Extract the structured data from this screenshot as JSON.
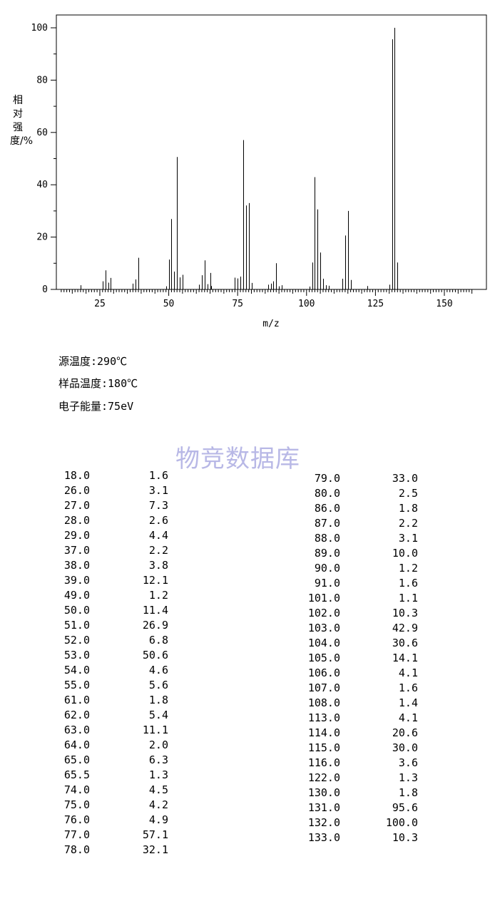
{
  "chart_data": {
    "type": "bar",
    "xlabel": "m/z",
    "ylabel": "相对强度/%",
    "xlim": [
      10,
      160
    ],
    "ylim": [
      0,
      100
    ],
    "xticks": [
      "25",
      "50",
      "75",
      "100",
      "125",
      "150"
    ],
    "yticks": [
      "0",
      "20",
      "40",
      "60",
      "80",
      "100"
    ],
    "grid": false,
    "peaks": [
      {
        "mz": 18.0,
        "intensity": 1.6
      },
      {
        "mz": 26.0,
        "intensity": 3.1
      },
      {
        "mz": 27.0,
        "intensity": 7.3
      },
      {
        "mz": 28.0,
        "intensity": 2.6
      },
      {
        "mz": 29.0,
        "intensity": 4.4
      },
      {
        "mz": 37.0,
        "intensity": 2.2
      },
      {
        "mz": 38.0,
        "intensity": 3.8
      },
      {
        "mz": 39.0,
        "intensity": 12.1
      },
      {
        "mz": 49.0,
        "intensity": 1.2
      },
      {
        "mz": 50.0,
        "intensity": 11.4
      },
      {
        "mz": 51.0,
        "intensity": 26.9
      },
      {
        "mz": 52.0,
        "intensity": 6.8
      },
      {
        "mz": 53.0,
        "intensity": 50.6
      },
      {
        "mz": 54.0,
        "intensity": 4.6
      },
      {
        "mz": 55.0,
        "intensity": 5.6
      },
      {
        "mz": 61.0,
        "intensity": 1.8
      },
      {
        "mz": 62.0,
        "intensity": 5.4
      },
      {
        "mz": 63.0,
        "intensity": 11.1
      },
      {
        "mz": 64.0,
        "intensity": 2.0
      },
      {
        "mz": 65.0,
        "intensity": 6.3
      },
      {
        "mz": 65.5,
        "intensity": 1.3
      },
      {
        "mz": 74.0,
        "intensity": 4.5
      },
      {
        "mz": 75.0,
        "intensity": 4.2
      },
      {
        "mz": 76.0,
        "intensity": 4.9
      },
      {
        "mz": 77.0,
        "intensity": 57.1
      },
      {
        "mz": 78.0,
        "intensity": 32.1
      },
      {
        "mz": 79.0,
        "intensity": 33.0
      },
      {
        "mz": 80.0,
        "intensity": 2.5
      },
      {
        "mz": 86.0,
        "intensity": 1.8
      },
      {
        "mz": 87.0,
        "intensity": 2.2
      },
      {
        "mz": 88.0,
        "intensity": 3.1
      },
      {
        "mz": 89.0,
        "intensity": 10.0
      },
      {
        "mz": 90.0,
        "intensity": 1.2
      },
      {
        "mz": 91.0,
        "intensity": 1.6
      },
      {
        "mz": 101.0,
        "intensity": 1.1
      },
      {
        "mz": 102.0,
        "intensity": 10.3
      },
      {
        "mz": 103.0,
        "intensity": 42.9
      },
      {
        "mz": 104.0,
        "intensity": 30.6
      },
      {
        "mz": 105.0,
        "intensity": 14.1
      },
      {
        "mz": 106.0,
        "intensity": 4.1
      },
      {
        "mz": 107.0,
        "intensity": 1.6
      },
      {
        "mz": 108.0,
        "intensity": 1.4
      },
      {
        "mz": 113.0,
        "intensity": 4.1
      },
      {
        "mz": 114.0,
        "intensity": 20.6
      },
      {
        "mz": 115.0,
        "intensity": 30.0
      },
      {
        "mz": 116.0,
        "intensity": 3.6
      },
      {
        "mz": 122.0,
        "intensity": 1.3
      },
      {
        "mz": 130.0,
        "intensity": 1.8
      },
      {
        "mz": 131.0,
        "intensity": 95.6
      },
      {
        "mz": 132.0,
        "intensity": 100.0
      },
      {
        "mz": 133.0,
        "intensity": 10.3
      }
    ]
  },
  "conditions": {
    "source_temp": "源温度:290℃",
    "sample_temp": "样品温度:180℃",
    "electron_energy": "电子能量:75eV"
  },
  "watermark": "物竞数据库",
  "table": {
    "left": [
      [
        "18.0",
        "1.6"
      ],
      [
        "26.0",
        "3.1"
      ],
      [
        "27.0",
        "7.3"
      ],
      [
        "28.0",
        "2.6"
      ],
      [
        "29.0",
        "4.4"
      ],
      [
        "37.0",
        "2.2"
      ],
      [
        "38.0",
        "3.8"
      ],
      [
        "39.0",
        "12.1"
      ],
      [
        "49.0",
        "1.2"
      ],
      [
        "50.0",
        "11.4"
      ],
      [
        "51.0",
        "26.9"
      ],
      [
        "52.0",
        "6.8"
      ],
      [
        "53.0",
        "50.6"
      ],
      [
        "54.0",
        "4.6"
      ],
      [
        "55.0",
        "5.6"
      ],
      [
        "61.0",
        "1.8"
      ],
      [
        "62.0",
        "5.4"
      ],
      [
        "63.0",
        "11.1"
      ],
      [
        "64.0",
        "2.0"
      ],
      [
        "65.0",
        "6.3"
      ],
      [
        "65.5",
        "1.3"
      ],
      [
        "74.0",
        "4.5"
      ],
      [
        "75.0",
        "4.2"
      ],
      [
        "76.0",
        "4.9"
      ],
      [
        "77.0",
        "57.1"
      ],
      [
        "78.0",
        "32.1"
      ]
    ],
    "right": [
      [
        "79.0",
        "33.0"
      ],
      [
        "80.0",
        "2.5"
      ],
      [
        "86.0",
        "1.8"
      ],
      [
        "87.0",
        "2.2"
      ],
      [
        "88.0",
        "3.1"
      ],
      [
        "89.0",
        "10.0"
      ],
      [
        "90.0",
        "1.2"
      ],
      [
        "91.0",
        "1.6"
      ],
      [
        "101.0",
        "1.1"
      ],
      [
        "102.0",
        "10.3"
      ],
      [
        "103.0",
        "42.9"
      ],
      [
        "104.0",
        "30.6"
      ],
      [
        "105.0",
        "14.1"
      ],
      [
        "106.0",
        "4.1"
      ],
      [
        "107.0",
        "1.6"
      ],
      [
        "108.0",
        "1.4"
      ],
      [
        "113.0",
        "4.1"
      ],
      [
        "114.0",
        "20.6"
      ],
      [
        "115.0",
        "30.0"
      ],
      [
        "116.0",
        "3.6"
      ],
      [
        "122.0",
        "1.3"
      ],
      [
        "130.0",
        "1.8"
      ],
      [
        "131.0",
        "95.6"
      ],
      [
        "132.0",
        "100.0"
      ],
      [
        "133.0",
        "10.3"
      ]
    ]
  }
}
